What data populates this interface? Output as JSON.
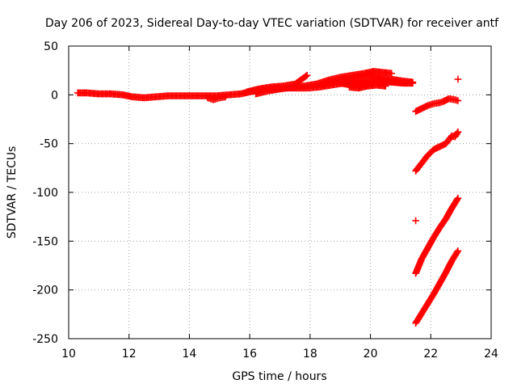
{
  "chart_data": {
    "type": "scatter",
    "title": "Day 206 of 2023, Sidereal Day-to-day VTEC variation (SDTVAR) for receiver antf",
    "xlabel": "GPS time / hours",
    "ylabel": "SDTVAR / TECUs",
    "xlim": [
      10,
      24
    ],
    "ylim": [
      -250,
      50
    ],
    "xticks": [
      "10",
      "12",
      "14",
      "16",
      "18",
      "20",
      "22",
      "24"
    ],
    "yticks": [
      "50",
      "0",
      "-50",
      "-100",
      "-150",
      "-200",
      "-250"
    ],
    "grid": true,
    "marker": "plus",
    "color": "#ff0000",
    "series": [
      {
        "points": [
          [
            10.3,
            2
          ],
          [
            10.6,
            2
          ],
          [
            11.0,
            1
          ],
          [
            11.4,
            1
          ],
          [
            11.8,
            0
          ],
          [
            12.1,
            -2
          ],
          [
            12.5,
            -3
          ],
          [
            12.9,
            -2
          ],
          [
            13.3,
            -1
          ],
          [
            13.7,
            -1
          ],
          [
            14.1,
            -1
          ],
          [
            14.5,
            -1
          ],
          [
            14.9,
            -1
          ],
          [
            15.3,
            0
          ],
          [
            15.7,
            1
          ],
          [
            16.0,
            3
          ],
          [
            16.3,
            5
          ],
          [
            16.7,
            6
          ],
          [
            17.1,
            7
          ],
          [
            17.5,
            7
          ],
          [
            17.9,
            7
          ],
          [
            18.3,
            8
          ],
          [
            18.7,
            10
          ],
          [
            19.1,
            12
          ],
          [
            19.5,
            14
          ],
          [
            19.9,
            15
          ],
          [
            20.3,
            14
          ],
          [
            20.7,
            13
          ],
          [
            21.1,
            12
          ],
          [
            21.4,
            12
          ]
        ]
      },
      {
        "points": [
          [
            15.9,
            3
          ],
          [
            16.3,
            6
          ],
          [
            16.7,
            8
          ],
          [
            17.1,
            9
          ],
          [
            17.5,
            11
          ],
          [
            17.9,
            20
          ]
        ]
      },
      {
        "points": [
          [
            16.2,
            1
          ],
          [
            16.6,
            4
          ],
          [
            17.0,
            6
          ],
          [
            17.4,
            8
          ],
          [
            17.8,
            9
          ],
          [
            18.2,
            11
          ],
          [
            18.6,
            15
          ],
          [
            19.0,
            18
          ],
          [
            19.4,
            20
          ],
          [
            19.8,
            22
          ],
          [
            20.1,
            24
          ],
          [
            20.4,
            23
          ],
          [
            20.7,
            22
          ]
        ]
      },
      {
        "points": [
          [
            18.4,
            10
          ],
          [
            18.8,
            14
          ],
          [
            19.2,
            16
          ],
          [
            19.5,
            18
          ],
          [
            19.9,
            20
          ],
          [
            20.3,
            18
          ],
          [
            20.7,
            16
          ],
          [
            21.1,
            14
          ],
          [
            21.4,
            13
          ]
        ]
      },
      {
        "points": [
          [
            19.0,
            12
          ],
          [
            19.4,
            10
          ],
          [
            19.8,
            11
          ],
          [
            20.1,
            13
          ],
          [
            20.5,
            14
          ],
          [
            20.9,
            13
          ],
          [
            21.2,
            12
          ]
        ]
      },
      {
        "points": [
          [
            19.3,
            8
          ],
          [
            19.6,
            7
          ],
          [
            19.9,
            9
          ],
          [
            20.2,
            10
          ],
          [
            20.5,
            9
          ]
        ]
      },
      {
        "points": [
          [
            14.6,
            -3
          ],
          [
            14.8,
            -5
          ],
          [
            15.0,
            -3
          ],
          [
            15.2,
            -2
          ]
        ]
      },
      {
        "points": [
          [
            21.5,
            -17
          ],
          [
            21.7,
            -14
          ],
          [
            21.9,
            -11
          ],
          [
            22.1,
            -9
          ],
          [
            22.3,
            -8
          ],
          [
            22.4,
            -7
          ],
          [
            22.6,
            -4
          ],
          [
            22.8,
            -5
          ],
          [
            22.9,
            -6
          ]
        ]
      },
      {
        "points": [
          [
            21.5,
            -78
          ],
          [
            21.7,
            -70
          ],
          [
            21.9,
            -62
          ],
          [
            22.1,
            -56
          ],
          [
            22.3,
            -53
          ],
          [
            22.5,
            -50
          ],
          [
            22.7,
            -42
          ],
          [
            22.8,
            -43
          ],
          [
            22.9,
            -38
          ]
        ]
      },
      {
        "points": [
          [
            21.5,
            -183
          ],
          [
            21.7,
            -168
          ],
          [
            21.9,
            -157
          ],
          [
            22.1,
            -146
          ],
          [
            22.3,
            -136
          ],
          [
            22.5,
            -127
          ],
          [
            22.7,
            -116
          ],
          [
            22.9,
            -106
          ]
        ]
      },
      {
        "points": [
          [
            21.5,
            -234
          ],
          [
            21.7,
            -224
          ],
          [
            21.9,
            -214
          ],
          [
            22.1,
            -204
          ],
          [
            22.3,
            -193
          ],
          [
            22.5,
            -182
          ],
          [
            22.7,
            -170
          ],
          [
            22.9,
            -160
          ]
        ]
      },
      {
        "points": [
          [
            21.5,
            -129
          ],
          [
            22.9,
            16
          ]
        ]
      }
    ]
  }
}
